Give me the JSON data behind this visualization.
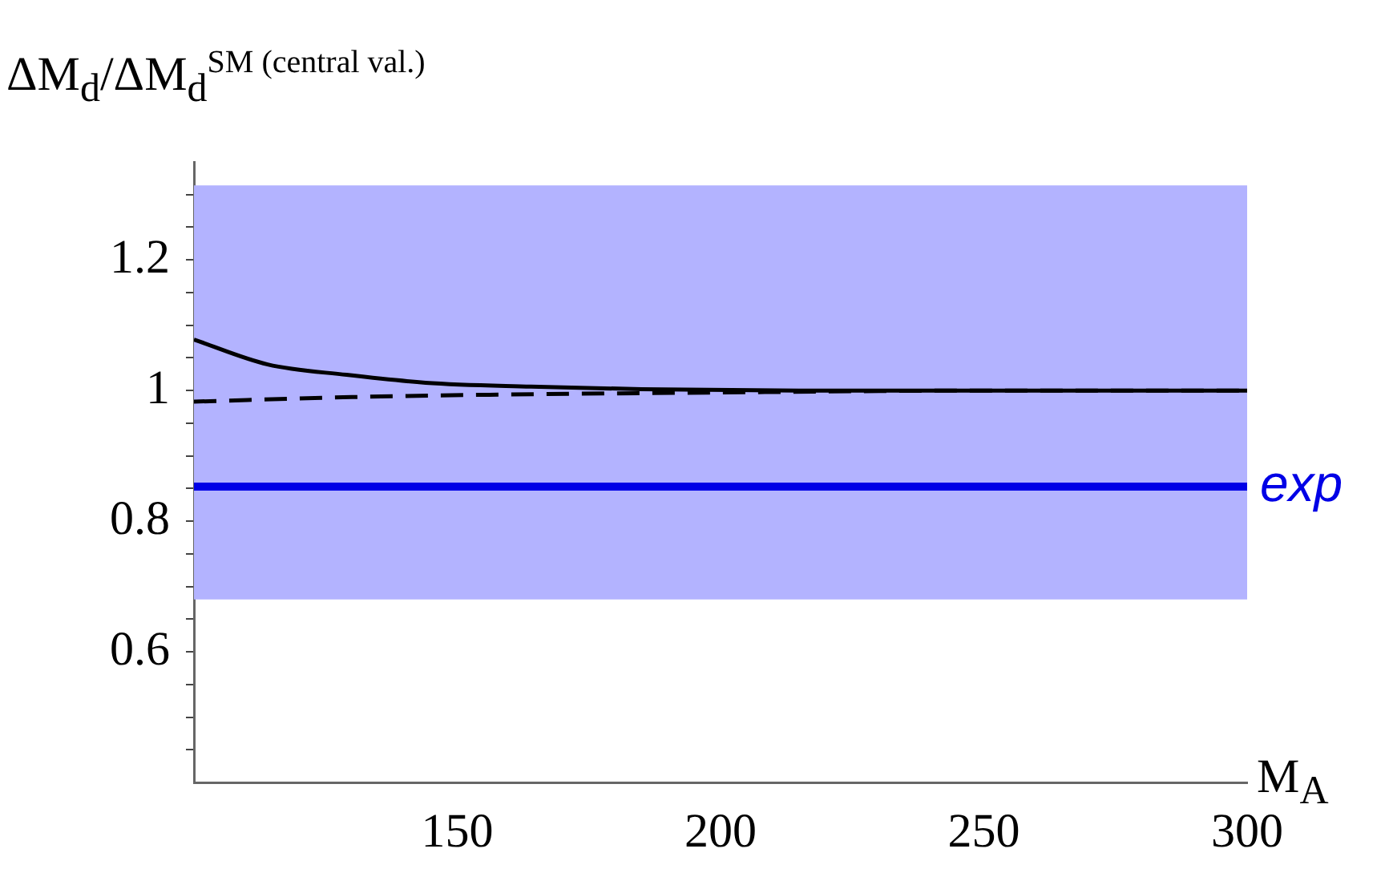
{
  "chart_data": {
    "type": "line",
    "xlabel": "M$_{A}$",
    "ylabel": "ΔM$_{d}$/ΔM$_{d}$$^{SM (central val.)}$",
    "xlim": [
      100,
      300
    ],
    "ylim": [
      0.4,
      1.35
    ],
    "xticks": [
      150,
      200,
      250,
      300
    ],
    "yticks": [
      {
        "value": 0.45,
        "label": null
      },
      {
        "value": 0.5,
        "label": null
      },
      {
        "value": 0.55,
        "label": null
      },
      0.6,
      {
        "value": 0.65,
        "label": null
      },
      {
        "value": 0.7,
        "label": null
      },
      {
        "value": 0.75,
        "label": null
      },
      0.8,
      {
        "value": 0.85,
        "label": null
      },
      {
        "value": 0.9,
        "label": null
      },
      {
        "value": 0.95,
        "label": null
      },
      1,
      {
        "value": 1.05,
        "label": null
      },
      {
        "value": 1.1,
        "label": null
      },
      {
        "value": 1.15,
        "label": null
      },
      1.2,
      {
        "value": 1.25,
        "label": null
      },
      {
        "value": 1.3,
        "label": null
      }
    ],
    "grid": false,
    "legend": false,
    "marker": "none",
    "bands": [
      {
        "axis": "y",
        "from": 0.68,
        "to": 1.314,
        "color": "#b3b3ff"
      }
    ],
    "ref_lines": [
      {
        "axis": "y",
        "value": 0.853,
        "label": "exp",
        "color": "#0000e6"
      }
    ],
    "series": [
      {
        "color": "#000000",
        "line_style": "solid",
        "x": [
          100,
          114,
          129,
          144,
          164,
          185,
          215,
          250,
          300
        ],
        "values": [
          1.078,
          1.04,
          1.024,
          1.012,
          1.006,
          1.002,
          1.0,
          1.0,
          1.0
        ]
      },
      {
        "color": "#000000",
        "line_style": "dashed",
        "x": [
          100,
          130,
          160,
          200,
          250,
          300
        ],
        "values": [
          0.983,
          0.99,
          0.994,
          0.997,
          1.0,
          1.0
        ]
      }
    ]
  }
}
